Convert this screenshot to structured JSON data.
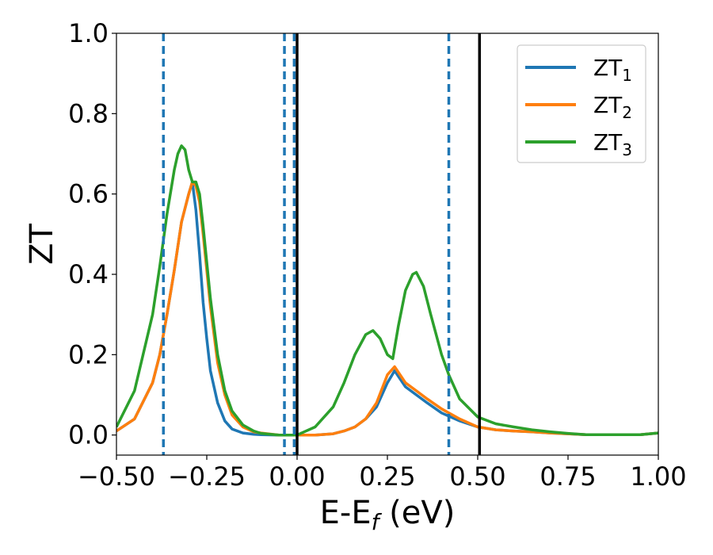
{
  "chart_data": {
    "type": "line",
    "xlabel": "E-E",
    "xlabel_sub": "f",
    "xlabel_unit": " (eV)",
    "ylabel": "ZT",
    "xlim": [
      -0.5,
      1.0
    ],
    "ylim": [
      -0.05,
      1.0
    ],
    "xticks": [
      -0.5,
      -0.25,
      0.0,
      0.25,
      0.5,
      0.75,
      1.0
    ],
    "xtick_labels": [
      "−0.50",
      "−0.25",
      "0.00",
      "0.25",
      "0.50",
      "0.75",
      "1.00"
    ],
    "yticks": [
      0.0,
      0.2,
      0.4,
      0.6,
      0.8,
      1.0
    ],
    "ytick_labels": [
      "0.0",
      "0.2",
      "0.4",
      "0.6",
      "0.8",
      "1.0"
    ],
    "grid": false,
    "legend_position": "top-right",
    "series": [
      {
        "name": "ZT",
        "name_sub": "1",
        "color": "#1f77b4",
        "x": [
          -0.5,
          -0.45,
          -0.4,
          -0.38,
          -0.36,
          -0.34,
          -0.32,
          -0.3,
          -0.29,
          -0.28,
          -0.27,
          -0.26,
          -0.25,
          -0.24,
          -0.22,
          -0.2,
          -0.18,
          -0.15,
          -0.12,
          -0.1,
          -0.05,
          0.0,
          0.05,
          0.1,
          0.13,
          0.16,
          0.19,
          0.22,
          0.25,
          0.27,
          0.3,
          0.33,
          0.36,
          0.4,
          0.45,
          0.5,
          0.55,
          0.6,
          0.65,
          0.7,
          0.75,
          0.8,
          0.85,
          0.9,
          0.95,
          1.0
        ],
        "y": [
          0.01,
          0.04,
          0.13,
          0.2,
          0.3,
          0.41,
          0.53,
          0.6,
          0.63,
          0.56,
          0.45,
          0.33,
          0.24,
          0.16,
          0.08,
          0.035,
          0.015,
          0.005,
          0.002,
          0.001,
          0.0,
          0.0,
          0.0,
          0.003,
          0.01,
          0.02,
          0.04,
          0.07,
          0.13,
          0.16,
          0.12,
          0.1,
          0.08,
          0.055,
          0.035,
          0.02,
          0.013,
          0.01,
          0.008,
          0.005,
          0.003,
          0.001,
          0.001,
          0.001,
          0.001,
          0.005
        ]
      },
      {
        "name": "ZT",
        "name_sub": "2",
        "color": "#ff7f0e",
        "x": [
          -0.5,
          -0.45,
          -0.4,
          -0.38,
          -0.36,
          -0.34,
          -0.32,
          -0.3,
          -0.29,
          -0.28,
          -0.27,
          -0.26,
          -0.25,
          -0.24,
          -0.22,
          -0.2,
          -0.18,
          -0.15,
          -0.12,
          -0.1,
          -0.05,
          0.0,
          0.05,
          0.1,
          0.13,
          0.16,
          0.19,
          0.22,
          0.25,
          0.27,
          0.3,
          0.33,
          0.36,
          0.4,
          0.45,
          0.5,
          0.55,
          0.6,
          0.65,
          0.7,
          0.75,
          0.8,
          0.85,
          0.9,
          0.95,
          1.0
        ],
        "y": [
          0.01,
          0.04,
          0.13,
          0.2,
          0.3,
          0.41,
          0.53,
          0.6,
          0.63,
          0.62,
          0.58,
          0.5,
          0.41,
          0.32,
          0.18,
          0.1,
          0.05,
          0.02,
          0.008,
          0.005,
          0.0,
          0.0,
          0.0,
          0.003,
          0.01,
          0.02,
          0.04,
          0.08,
          0.15,
          0.17,
          0.13,
          0.11,
          0.09,
          0.065,
          0.04,
          0.02,
          0.013,
          0.01,
          0.008,
          0.005,
          0.003,
          0.001,
          0.001,
          0.001,
          0.001,
          0.005
        ]
      },
      {
        "name": "ZT",
        "name_sub": "3",
        "color": "#2ca02c",
        "x": [
          -0.5,
          -0.45,
          -0.4,
          -0.38,
          -0.36,
          -0.34,
          -0.33,
          -0.32,
          -0.31,
          -0.3,
          -0.29,
          -0.28,
          -0.27,
          -0.26,
          -0.25,
          -0.24,
          -0.22,
          -0.2,
          -0.18,
          -0.15,
          -0.12,
          -0.1,
          -0.05,
          0.0,
          0.05,
          0.1,
          0.13,
          0.16,
          0.19,
          0.21,
          0.23,
          0.25,
          0.265,
          0.28,
          0.3,
          0.32,
          0.33,
          0.35,
          0.37,
          0.4,
          0.42,
          0.45,
          0.5,
          0.55,
          0.6,
          0.65,
          0.7,
          0.75,
          0.8,
          0.85,
          0.9,
          0.95,
          1.0
        ],
        "y": [
          0.02,
          0.11,
          0.3,
          0.42,
          0.55,
          0.66,
          0.7,
          0.72,
          0.71,
          0.66,
          0.63,
          0.63,
          0.6,
          0.52,
          0.43,
          0.34,
          0.2,
          0.11,
          0.06,
          0.025,
          0.01,
          0.004,
          0.0,
          0.0,
          0.02,
          0.07,
          0.13,
          0.2,
          0.25,
          0.26,
          0.24,
          0.2,
          0.19,
          0.27,
          0.36,
          0.4,
          0.405,
          0.37,
          0.3,
          0.2,
          0.15,
          0.09,
          0.045,
          0.028,
          0.02,
          0.013,
          0.008,
          0.004,
          0.001,
          0.001,
          0.001,
          0.001,
          0.005
        ]
      }
    ],
    "vlines_dashed": {
      "x": [
        -0.37,
        -0.035,
        -0.008,
        0.42
      ],
      "color": "#1f77b4"
    },
    "vlines_solid": {
      "x": [
        0.0,
        0.505
      ],
      "color": "#000000"
    }
  }
}
